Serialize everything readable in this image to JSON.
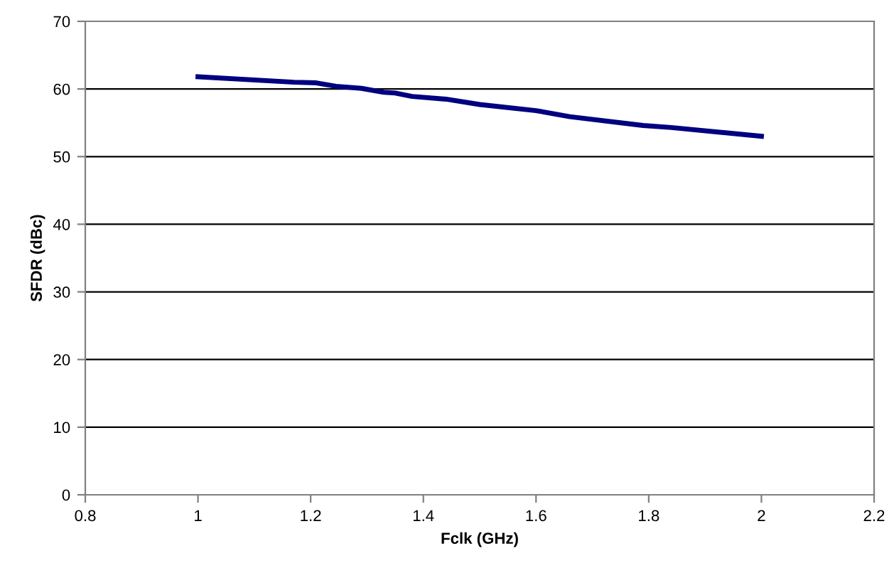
{
  "chart_data": {
    "type": "line",
    "xlabel": "Fclk (GHz)",
    "ylabel": "SFDR (dBc)",
    "x": [
      1.0,
      1.17,
      1.21,
      1.245,
      1.29,
      1.33,
      1.35,
      1.38,
      1.44,
      1.5,
      1.6,
      1.66,
      1.79,
      1.84,
      2.0
    ],
    "series": [
      {
        "color": "#000080",
        "values": [
          61.8,
          61.0,
          60.9,
          60.4,
          60.1,
          59.5,
          59.4,
          58.9,
          58.5,
          57.7,
          56.8,
          55.9,
          54.6,
          54.3,
          53.0
        ]
      }
    ],
    "xlim": [
      0.8,
      2.2
    ],
    "xticks": [
      0.8,
      1,
      1.2,
      1.4,
      1.6,
      1.8,
      2,
      2.2
    ],
    "ylim": [
      0,
      70
    ],
    "yticks": [
      0,
      10,
      20,
      30,
      40,
      50,
      60,
      70
    ],
    "grid": "y",
    "legend": false,
    "marker": "none",
    "line_style": "solid"
  }
}
